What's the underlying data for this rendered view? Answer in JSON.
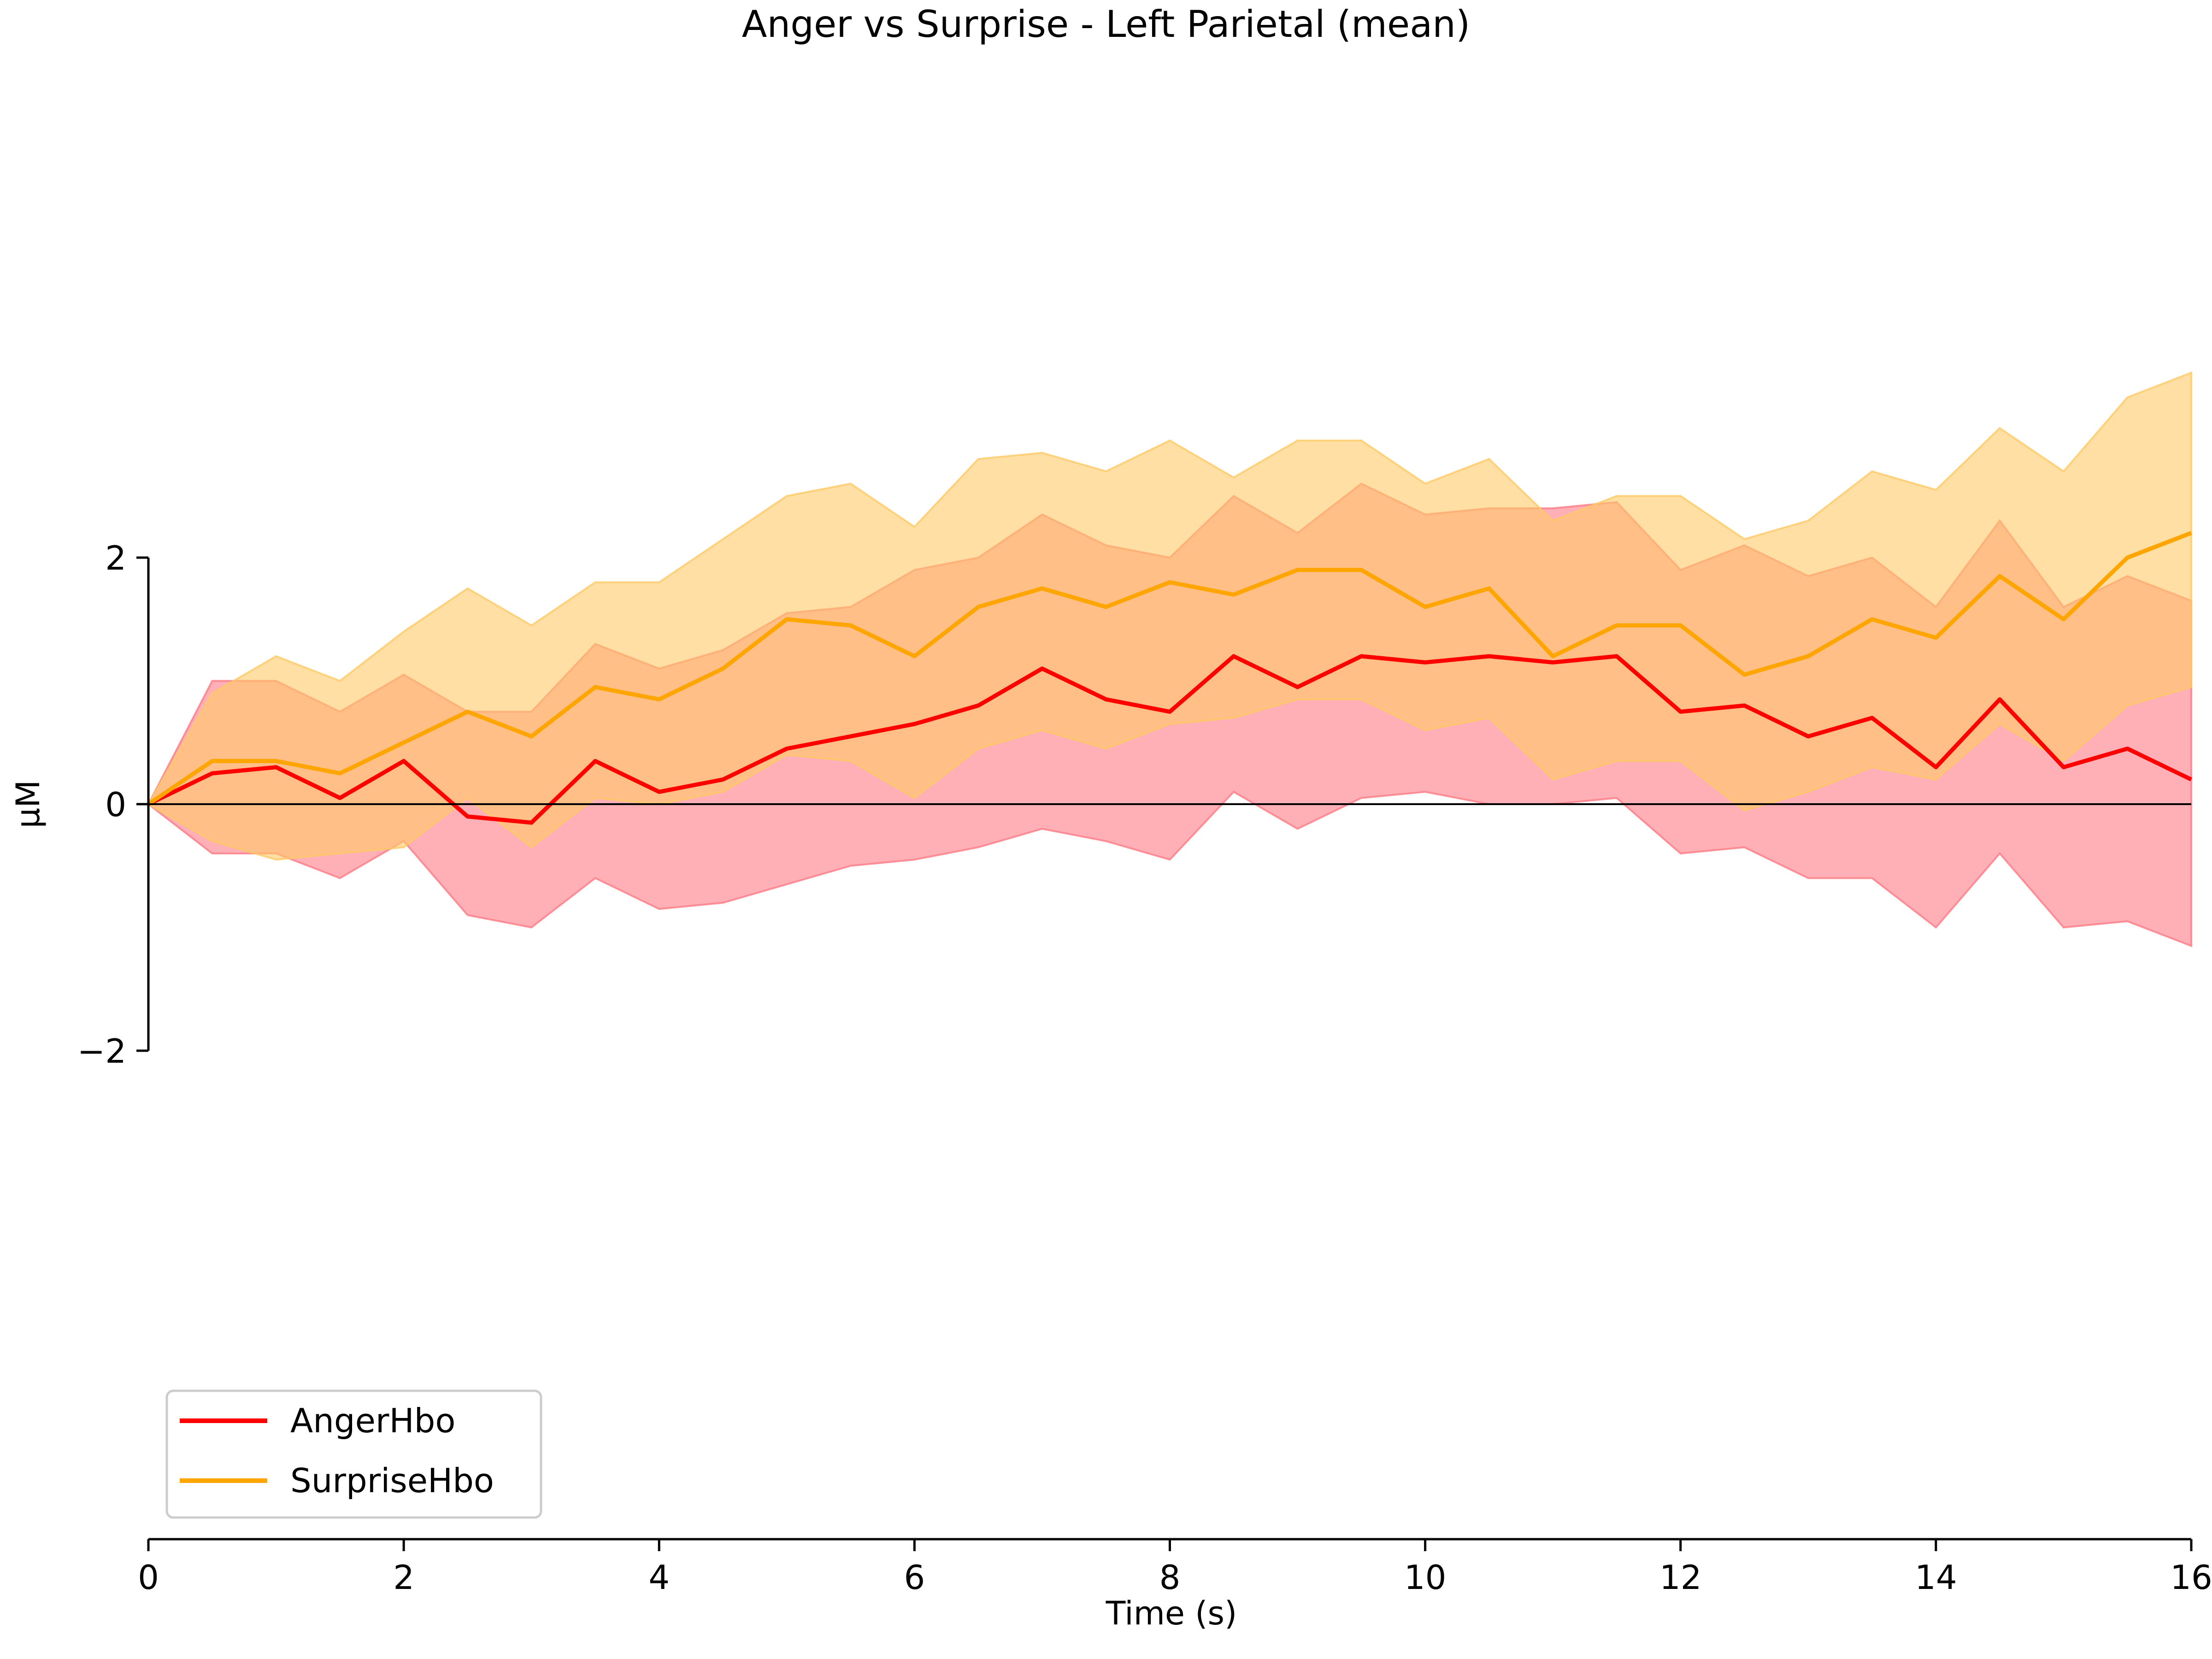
{
  "chart_data": {
    "type": "line",
    "title": "Anger vs Surprise - Left Parietal (mean)",
    "xlabel": "Time (s)",
    "ylabel": "µM",
    "xlim": [
      0,
      16
    ],
    "ylim": [
      -2,
      2
    ],
    "xticks": [
      0,
      2,
      4,
      6,
      8,
      10,
      12,
      14,
      16
    ],
    "xtick_labels": [
      "0",
      "2",
      "4",
      "6",
      "8",
      "10",
      "12",
      "14",
      "16"
    ],
    "yticks": [
      -2,
      0,
      2
    ],
    "ytick_labels": [
      "−2",
      "0",
      "2"
    ],
    "grid": false,
    "legend_position": "lower-left",
    "zero_line": true,
    "x": [
      0,
      0.5,
      1,
      1.5,
      2,
      2.5,
      3,
      3.5,
      4,
      4.5,
      5,
      5.5,
      6,
      6.5,
      7,
      7.5,
      8,
      8.5,
      9,
      9.5,
      10,
      10.5,
      11,
      11.5,
      12,
      12.5,
      13,
      13.5,
      14,
      14.5,
      15,
      15.5,
      16
    ],
    "series": [
      {
        "name": "AngerHbo",
        "color": "#ff0000",
        "band_color": "#ff7a85",
        "mean": [
          0,
          0.25,
          0.3,
          0.05,
          0.35,
          -0.1,
          -0.15,
          0.35,
          0.1,
          0.2,
          0.45,
          0.55,
          0.65,
          0.8,
          1.1,
          0.85,
          0.75,
          1.2,
          0.95,
          1.2,
          1.15,
          1.2,
          1.15,
          1.2,
          0.75,
          0.8,
          0.55,
          0.7,
          0.3,
          0.85,
          0.3,
          0.45,
          0.2
        ],
        "upper": [
          0,
          1.0,
          1.0,
          0.75,
          1.05,
          0.75,
          0.75,
          1.3,
          1.1,
          1.25,
          1.55,
          1.6,
          1.9,
          2.0,
          2.35,
          2.1,
          2.0,
          2.5,
          2.2,
          2.6,
          2.35,
          2.4,
          2.4,
          2.45,
          1.9,
          2.1,
          1.85,
          2.0,
          1.6,
          2.3,
          1.6,
          1.85,
          1.65
        ],
        "lower": [
          0,
          -0.4,
          -0.4,
          -0.6,
          -0.3,
          -0.9,
          -1.0,
          -0.6,
          -0.85,
          -0.8,
          -0.65,
          -0.5,
          -0.45,
          -0.35,
          -0.2,
          -0.3,
          -0.45,
          0.1,
          -0.2,
          0.05,
          0.1,
          0.0,
          0.0,
          0.05,
          -0.4,
          -0.35,
          -0.6,
          -0.6,
          -1.0,
          -0.4,
          -1.0,
          -0.95,
          -1.15
        ]
      },
      {
        "name": "SurpriseHbo",
        "color": "#ffa500",
        "band_color": "#ffc966",
        "mean": [
          0,
          0.35,
          0.35,
          0.25,
          0.5,
          0.75,
          0.55,
          0.95,
          0.85,
          1.1,
          1.5,
          1.45,
          1.2,
          1.6,
          1.75,
          1.6,
          1.8,
          1.7,
          1.9,
          1.9,
          1.6,
          1.75,
          1.2,
          1.45,
          1.45,
          1.05,
          1.2,
          1.5,
          1.35,
          1.85,
          1.5,
          2.0,
          2.2
        ],
        "upper": [
          0,
          0.9,
          1.2,
          1.0,
          1.4,
          1.75,
          1.45,
          1.8,
          1.8,
          2.15,
          2.5,
          2.6,
          2.25,
          2.8,
          2.85,
          2.7,
          2.95,
          2.65,
          2.95,
          2.95,
          2.6,
          2.8,
          2.3,
          2.5,
          2.5,
          2.15,
          2.3,
          2.7,
          2.55,
          3.05,
          2.7,
          3.3,
          3.5
        ],
        "lower": [
          0,
          -0.3,
          -0.45,
          -0.4,
          -0.35,
          0.05,
          -0.35,
          0.05,
          0.0,
          0.1,
          0.4,
          0.35,
          0.05,
          0.45,
          0.6,
          0.45,
          0.65,
          0.7,
          0.85,
          0.85,
          0.6,
          0.7,
          0.2,
          0.35,
          0.35,
          -0.05,
          0.1,
          0.3,
          0.2,
          0.65,
          0.35,
          0.8,
          0.95
        ]
      }
    ]
  }
}
